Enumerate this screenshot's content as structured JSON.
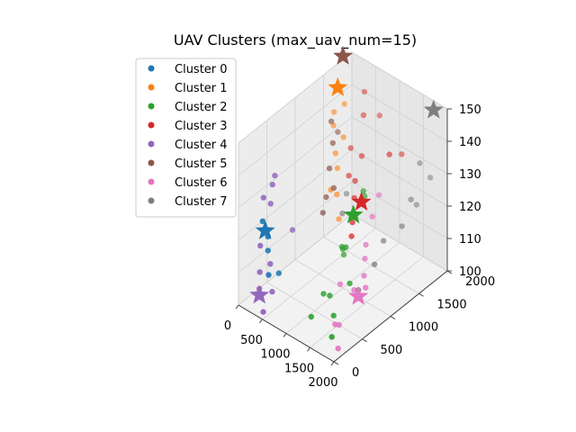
{
  "chart_data": {
    "type": "scatter",
    "projection": "3d",
    "title": "UAV Clusters (max_uav_num=15)",
    "xlabel": "",
    "ylabel": "",
    "zlabel": "",
    "x_ticks": [
      "0",
      "500",
      "1000",
      "1500",
      "2000"
    ],
    "y_ticks": [
      "0",
      "500",
      "1000",
      "1500",
      "2000"
    ],
    "z_ticks": [
      "100",
      "110",
      "120",
      "130",
      "140",
      "150"
    ],
    "xlim": [
      0,
      2000
    ],
    "ylim": [
      0,
      2000
    ],
    "zlim": [
      100,
      150
    ],
    "grid": true,
    "legend_placement": "upper-left",
    "series": [
      {
        "name": "Cluster 0",
        "color": "#1f77b4",
        "points": [
          [
            150,
            300,
            123
          ],
          [
            200,
            350,
            118
          ],
          [
            120,
            420,
            112
          ],
          [
            300,
            280,
            108
          ],
          [
            250,
            500,
            105
          ]
        ],
        "center": [
          180,
          320,
          120
        ]
      },
      {
        "name": "Cluster 1",
        "color": "#ff7f0e",
        "points": [
          [
            100,
            1600,
            138
          ],
          [
            150,
            1550,
            135
          ],
          [
            200,
            1700,
            140
          ],
          [
            250,
            1500,
            128
          ],
          [
            350,
            1450,
            125
          ],
          [
            400,
            1400,
            118
          ],
          [
            500,
            1350,
            112
          ],
          [
            300,
            1600,
            132
          ],
          [
            450,
            1250,
            122
          ]
        ],
        "center": [
          120,
          1650,
          145
        ]
      },
      {
        "name": "Cluster 2",
        "color": "#2ca02c",
        "points": [
          [
            1200,
            600,
            105
          ],
          [
            1000,
            1000,
            112
          ],
          [
            1100,
            900,
            115
          ],
          [
            1300,
            800,
            118
          ],
          [
            900,
            1100,
            108
          ],
          [
            1400,
            500,
            102
          ],
          [
            1500,
            700,
            110
          ],
          [
            1100,
            1300,
            125
          ],
          [
            1250,
            1150,
            130
          ],
          [
            1600,
            300,
            100
          ],
          [
            950,
            700,
            102
          ],
          [
            1050,
            400,
            100
          ]
        ],
        "center": [
          1100,
          1100,
          122
        ]
      },
      {
        "name": "Cluster 3",
        "color": "#d62728",
        "points": [
          [
            500,
            1800,
            145
          ],
          [
            600,
            1700,
            140
          ],
          [
            700,
            1900,
            138
          ],
          [
            800,
            1500,
            132
          ],
          [
            900,
            1300,
            128
          ],
          [
            1000,
            1200,
            125
          ],
          [
            1200,
            1000,
            122
          ],
          [
            1300,
            900,
            120
          ],
          [
            1400,
            1700,
            135
          ],
          [
            1500,
            1400,
            140
          ],
          [
            450,
            1600,
            130
          ],
          [
            650,
            1400,
            126
          ]
        ],
        "center": [
          1150,
          1200,
          125
        ]
      },
      {
        "name": "Cluster 4",
        "color": "#9467bd",
        "points": [
          [
            50,
            400,
            128
          ],
          [
            80,
            500,
            125
          ],
          [
            100,
            300,
            115
          ],
          [
            150,
            250,
            108
          ],
          [
            200,
            200,
            104
          ],
          [
            250,
            350,
            110
          ],
          [
            300,
            700,
            116
          ],
          [
            50,
            600,
            132
          ],
          [
            60,
            550,
            130
          ],
          [
            400,
            100,
            100
          ],
          [
            350,
            300,
            103
          ]
        ],
        "center": [
          200,
          200,
          102
        ]
      },
      {
        "name": "Cluster 5",
        "color": "#8c564b",
        "points": [
          [
            400,
            1300,
            142
          ],
          [
            550,
            1200,
            138
          ],
          [
            600,
            1100,
            132
          ],
          [
            650,
            1000,
            125
          ],
          [
            700,
            900,
            122
          ],
          [
            300,
            1500,
            135
          ],
          [
            750,
            1050,
            128
          ]
        ],
        "center": [
          50,
          1800,
          152
        ]
      },
      {
        "name": "Cluster 6",
        "color": "#e377c2",
        "points": [
          [
            1700,
            800,
            118
          ],
          [
            1800,
            700,
            115
          ],
          [
            1600,
            900,
            120
          ],
          [
            1900,
            500,
            112
          ],
          [
            1500,
            1100,
            125
          ],
          [
            1400,
            1300,
            128
          ],
          [
            1650,
            650,
            110
          ],
          [
            1750,
            300,
            105
          ],
          [
            1550,
            400,
            102
          ],
          [
            1850,
            200,
            100
          ],
          [
            1950,
            600,
            114
          ],
          [
            1300,
            700,
            108
          ]
        ],
        "center": [
          1800,
          600,
          110
        ]
      },
      {
        "name": "Cluster 7",
        "color": "#7f7f7f",
        "points": [
          [
            1900,
            1600,
            138
          ],
          [
            1950,
            1400,
            130
          ],
          [
            2000,
            1200,
            125
          ],
          [
            1850,
            1000,
            122
          ],
          [
            1900,
            800,
            118
          ],
          [
            1800,
            600,
            112
          ],
          [
            1950,
            1500,
            127
          ],
          [
            2000,
            1700,
            133
          ],
          [
            600,
            1400,
            120
          ],
          [
            750,
            1200,
            118
          ]
        ],
        "center": [
          1950,
          1800,
          152
        ]
      }
    ]
  }
}
